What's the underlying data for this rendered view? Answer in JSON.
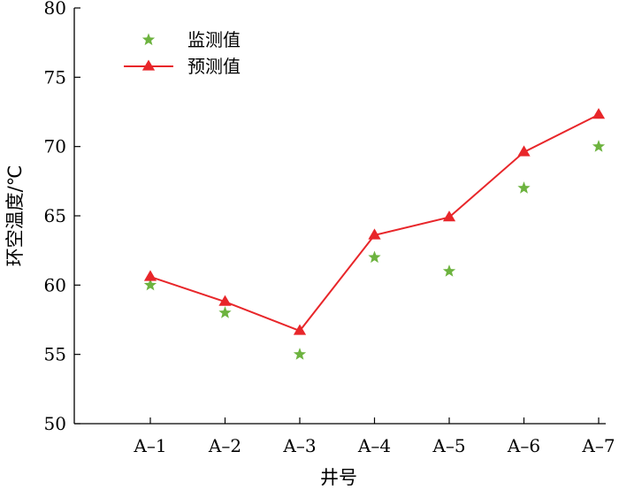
{
  "chart_data": {
    "type": "line",
    "categories": [
      "A–1",
      "A–2",
      "A–3",
      "A–4",
      "A–5",
      "A–6",
      "A–7"
    ],
    "series": [
      {
        "name": "监测值",
        "style": "markers",
        "marker": "star",
        "color": "#6db33f",
        "values": [
          60,
          58,
          55,
          62,
          61,
          67,
          70
        ]
      },
      {
        "name": "预测值",
        "style": "line+markers",
        "marker": "triangle",
        "color": "#e8262a",
        "values": [
          60.6,
          58.8,
          56.7,
          63.6,
          64.9,
          69.6,
          72.3
        ]
      }
    ],
    "xlabel": "井号",
    "ylabel": "环空温度/℃",
    "ylim": [
      50,
      80
    ],
    "yticks": [
      50,
      55,
      60,
      65,
      70,
      75,
      80
    ],
    "grid": false,
    "legend_position": "top-left"
  }
}
